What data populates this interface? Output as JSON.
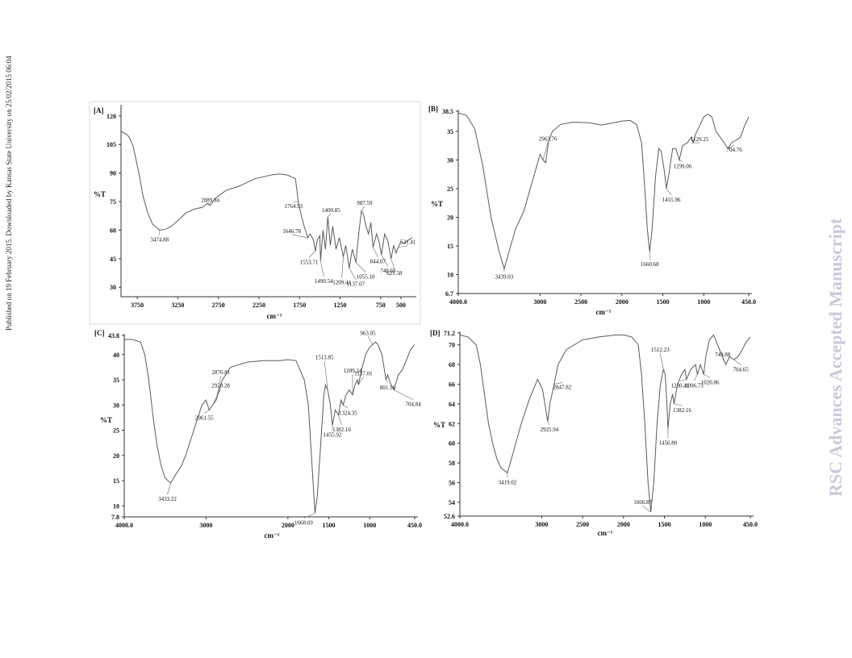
{
  "side_text_left": "Published on 19 February 2015. Downloaded by Kansas State University on 25/02/2015 06:04",
  "watermark": "RSC Advances Accepted Manuscript",
  "colors": {
    "line": "#5a5a5a",
    "text": "#111111",
    "watermark": "#c9c9dc"
  },
  "chart_data": [
    {
      "type": "line",
      "panel_label": "[A]",
      "ylabel": "%T",
      "xlabel": "cm⁻¹",
      "xlim": [
        3950,
        350
      ],
      "ylim": [
        25,
        125
      ],
      "xticks": [
        3750,
        3250,
        2750,
        2250,
        1750,
        1250,
        750,
        500
      ],
      "yticks": [
        30,
        45,
        60,
        75,
        90,
        105,
        120
      ],
      "points": [
        [
          3950,
          112
        ],
        [
          3870,
          110
        ],
        [
          3840,
          108
        ],
        [
          3800,
          104
        ],
        [
          3760,
          96
        ],
        [
          3720,
          88
        ],
        [
          3680,
          78
        ],
        [
          3620,
          69
        ],
        [
          3560,
          63
        ],
        [
          3500,
          61
        ],
        [
          3474.88,
          60
        ],
        [
          3400,
          60.5
        ],
        [
          3330,
          62
        ],
        [
          3250,
          65
        ],
        [
          3150,
          69
        ],
        [
          3050,
          71
        ],
        [
          2950,
          72
        ],
        [
          2890,
          74
        ],
        [
          2850,
          73
        ],
        [
          2800,
          76
        ],
        [
          2750,
          78
        ],
        [
          2650,
          81
        ],
        [
          2500,
          83
        ],
        [
          2400,
          85
        ],
        [
          2300,
          87
        ],
        [
          2200,
          88
        ],
        [
          2100,
          89
        ],
        [
          2000,
          89.5
        ],
        [
          1900,
          89
        ],
        [
          1850,
          88
        ],
        [
          1800,
          87
        ],
        [
          1764.93,
          75
        ],
        [
          1730,
          68
        ],
        [
          1700,
          63
        ],
        [
          1646.78,
          56
        ],
        [
          1620,
          58
        ],
        [
          1580,
          55
        ],
        [
          1553.71,
          49
        ],
        [
          1530,
          55
        ],
        [
          1500,
          57
        ],
        [
          1490.54,
          44
        ],
        [
          1460,
          60
        ],
        [
          1430,
          50
        ],
        [
          1400.85,
          67
        ],
        [
          1370,
          52
        ],
        [
          1340,
          62
        ],
        [
          1300,
          50
        ],
        [
          1260,
          56
        ],
        [
          1209.41,
          46
        ],
        [
          1180,
          52
        ],
        [
          1137.07,
          40
        ],
        [
          1100,
          50
        ],
        [
          1055.1,
          43
        ],
        [
          1020,
          58
        ],
        [
          987.59,
          70
        ],
        [
          960,
          68
        ],
        [
          930,
          62
        ],
        [
          900,
          58
        ],
        [
          870,
          64
        ],
        [
          844.07,
          51
        ],
        [
          800,
          58
        ],
        [
          770,
          54
        ],
        [
          740.69,
          47
        ],
        [
          700,
          58
        ],
        [
          660,
          54
        ],
        [
          621.58,
          45
        ],
        [
          590,
          52
        ],
        [
          560,
          48
        ],
        [
          531.41,
          51
        ],
        [
          500,
          54
        ],
        [
          460,
          53
        ],
        [
          400,
          55
        ],
        [
          360,
          56
        ]
      ],
      "peaks": [
        {
          "x": 3474.88,
          "label": "3474.88"
        },
        {
          "x": 2889.94,
          "label": "2889.94"
        },
        {
          "x": 1764.93,
          "label": "1764.93"
        },
        {
          "x": 1646.78,
          "label": "1646.78"
        },
        {
          "x": 1553.71,
          "label": "1553.71"
        },
        {
          "x": 1490.54,
          "label": "1490.54"
        },
        {
          "x": 1400.85,
          "label": "1400.85"
        },
        {
          "x": 1209.41,
          "label": "1209.41"
        },
        {
          "x": 1137.07,
          "label": "1137.07"
        },
        {
          "x": 1055.1,
          "label": "1055.10"
        },
        {
          "x": 987.59,
          "label": "987.59"
        },
        {
          "x": 844.07,
          "label": "844.07"
        },
        {
          "x": 740.69,
          "label": "740.69"
        },
        {
          "x": 621.58,
          "label": "621.58"
        },
        {
          "x": 531.41,
          "label": "531.41"
        }
      ]
    },
    {
      "type": "line",
      "panel_label": "[B]",
      "ylabel": "%T",
      "xlabel": "cm⁻¹",
      "xlim": [
        4000,
        450
      ],
      "ylim": [
        6.7,
        38.5
      ],
      "xticks_labels": [
        "4000.0",
        "3000",
        "2500",
        "2000",
        "1500",
        "1000",
        "450.0"
      ],
      "xticks": [
        4000,
        3000,
        2500,
        2000,
        1500,
        1000,
        450
      ],
      "ytick_labels": [
        "6.7",
        "10",
        "15",
        "20",
        "25",
        "30",
        "35",
        "38.5"
      ],
      "yticks": [
        6.7,
        10,
        15,
        20,
        25,
        30,
        35,
        38.5
      ],
      "points": [
        [
          4000,
          38.2
        ],
        [
          3900,
          37.8
        ],
        [
          3800,
          35.5
        ],
        [
          3700,
          29
        ],
        [
          3600,
          20
        ],
        [
          3500,
          14
        ],
        [
          3439.03,
          11
        ],
        [
          3380,
          14
        ],
        [
          3300,
          18
        ],
        [
          3200,
          21
        ],
        [
          3100,
          26
        ],
        [
          3000,
          31
        ],
        [
          2963.76,
          30
        ],
        [
          2930,
          29.5
        ],
        [
          2900,
          33
        ],
        [
          2850,
          35
        ],
        [
          2750,
          36.2
        ],
        [
          2600,
          36.6
        ],
        [
          2400,
          36.5
        ],
        [
          2250,
          36.1
        ],
        [
          2100,
          36.5
        ],
        [
          2000,
          36.8
        ],
        [
          1900,
          36.9
        ],
        [
          1820,
          36.2
        ],
        [
          1760,
          33
        ],
        [
          1720,
          25
        ],
        [
          1690,
          18
        ],
        [
          1660.68,
          14
        ],
        [
          1630,
          18
        ],
        [
          1590,
          27
        ],
        [
          1550,
          32
        ],
        [
          1520,
          31.5
        ],
        [
          1480,
          28
        ],
        [
          1455.96,
          25
        ],
        [
          1420,
          28
        ],
        [
          1380,
          32
        ],
        [
          1340,
          32
        ],
        [
          1299.06,
          30
        ],
        [
          1260,
          32.5
        ],
        [
          1200,
          33
        ],
        [
          1150,
          34
        ],
        [
          1129.25,
          33
        ],
        [
          1100,
          34.5
        ],
        [
          1050,
          36
        ],
        [
          1000,
          37.5
        ],
        [
          950,
          38
        ],
        [
          900,
          37.5
        ],
        [
          850,
          35
        ],
        [
          800,
          34
        ],
        [
          750,
          33
        ],
        [
          704.76,
          32
        ],
        [
          660,
          33
        ],
        [
          600,
          33.5
        ],
        [
          550,
          34
        ],
        [
          500,
          36
        ],
        [
          450,
          37.5
        ]
      ],
      "peaks": [
        {
          "x": 3439.03,
          "label": "3439.03"
        },
        {
          "x": 2963.76,
          "label": "2963.76"
        },
        {
          "x": 1660.68,
          "label": "1660.68"
        },
        {
          "x": 1455.96,
          "label": "1455.96"
        },
        {
          "x": 1299.06,
          "label": "1299.06"
        },
        {
          "x": 1129.25,
          "label": "1129.25"
        },
        {
          "x": 704.76,
          "label": "704.76"
        }
      ]
    },
    {
      "type": "line",
      "panel_label": "[C]",
      "ylabel": "%T",
      "xlabel": "cm⁻¹",
      "xlim": [
        4000,
        450
      ],
      "ylim": [
        7.8,
        43.8
      ],
      "xticks_labels": [
        "4000.0",
        "3000",
        "2000",
        "1500",
        "1000",
        "450.0"
      ],
      "xticks": [
        4000,
        3000,
        2000,
        1500,
        1000,
        450
      ],
      "ytick_labels": [
        "7.8",
        "10",
        "15",
        "20",
        "25",
        "30",
        "35",
        "40",
        "43.8"
      ],
      "yticks": [
        7.8,
        10,
        15,
        20,
        25,
        30,
        35,
        40,
        43.8
      ],
      "points": [
        [
          4000,
          43
        ],
        [
          3900,
          43
        ],
        [
          3800,
          42.5
        ],
        [
          3750,
          40
        ],
        [
          3700,
          35
        ],
        [
          3650,
          28
        ],
        [
          3600,
          22
        ],
        [
          3550,
          18
        ],
        [
          3500,
          15.5
        ],
        [
          3433.22,
          14.5
        ],
        [
          3380,
          16
        ],
        [
          3300,
          18
        ],
        [
          3250,
          20
        ],
        [
          3150,
          25
        ],
        [
          3050,
          30
        ],
        [
          3000,
          31
        ],
        [
          2961.55,
          29
        ],
        [
          2920.28,
          30
        ],
        [
          2876.81,
          31
        ],
        [
          2800,
          35
        ],
        [
          2700,
          37.5
        ],
        [
          2500,
          38.5
        ],
        [
          2300,
          38.8
        ],
        [
          2100,
          38.8
        ],
        [
          2000,
          39
        ],
        [
          1900,
          38.8
        ],
        [
          1800,
          35
        ],
        [
          1750,
          30
        ],
        [
          1720,
          22
        ],
        [
          1690,
          14
        ],
        [
          1668.69,
          8.5
        ],
        [
          1640,
          12
        ],
        [
          1600,
          22
        ],
        [
          1560,
          32
        ],
        [
          1540,
          34
        ],
        [
          1513.85,
          33
        ],
        [
          1480,
          30
        ],
        [
          1455.92,
          26
        ],
        [
          1420,
          29
        ],
        [
          1382.16,
          28
        ],
        [
          1350,
          31
        ],
        [
          1324.35,
          30
        ],
        [
          1290,
          32
        ],
        [
          1250,
          33
        ],
        [
          1209.24,
          32
        ],
        [
          1180,
          34
        ],
        [
          1150,
          35
        ],
        [
          1137.01,
          34
        ],
        [
          1100,
          37
        ],
        [
          1050,
          40
        ],
        [
          1000,
          41.5
        ],
        [
          963.05,
          42
        ],
        [
          930,
          42.5
        ],
        [
          900,
          42
        ],
        [
          850,
          40
        ],
        [
          801.16,
          35
        ],
        [
          780,
          36
        ],
        [
          740,
          34
        ],
        [
          704.84,
          33
        ],
        [
          650,
          36
        ],
        [
          600,
          37
        ],
        [
          550,
          39
        ],
        [
          500,
          41
        ],
        [
          450,
          42
        ]
      ],
      "peaks": [
        {
          "x": 3433.22,
          "label": "3433.22"
        },
        {
          "x": 2961.55,
          "label": "2961.55"
        },
        {
          "x": 2920.28,
          "label": "2920.28"
        },
        {
          "x": 2876.81,
          "label": "2876.81"
        },
        {
          "x": 1668.69,
          "label": "1668.69"
        },
        {
          "x": 1513.85,
          "label": "1513.85"
        },
        {
          "x": 1455.92,
          "label": "1455.92"
        },
        {
          "x": 1382.16,
          "label": "1382.16"
        },
        {
          "x": 1324.35,
          "label": "1324.35"
        },
        {
          "x": 1209.24,
          "label": "1209.24"
        },
        {
          "x": 1137.01,
          "label": "1137.01"
        },
        {
          "x": 963.05,
          "label": "963.05"
        },
        {
          "x": 801.16,
          "label": "801.16"
        },
        {
          "x": 704.84,
          "label": "704.84"
        }
      ]
    },
    {
      "type": "line",
      "panel_label": "[D]",
      "ylabel": "%T",
      "xlabel": "cm⁻¹",
      "xlim": [
        4000,
        450
      ],
      "ylim": [
        52.6,
        71.2
      ],
      "xticks_labels": [
        "4000.0",
        "3000",
        "2500",
        "2000",
        "1500",
        "1000",
        "450.0"
      ],
      "xticks": [
        4000,
        3000,
        2500,
        2000,
        1500,
        1000,
        450
      ],
      "ytick_labels": [
        "52.6",
        "54",
        "56",
        "58",
        "60",
        "62",
        "64",
        "66",
        "68",
        "70",
        "71.2"
      ],
      "yticks": [
        52.6,
        54,
        56,
        58,
        60,
        62,
        64,
        66,
        68,
        70,
        71.2
      ],
      "points": [
        [
          4000,
          71
        ],
        [
          3900,
          70.8
        ],
        [
          3800,
          70
        ],
        [
          3750,
          68
        ],
        [
          3700,
          65
        ],
        [
          3650,
          62
        ],
        [
          3600,
          60
        ],
        [
          3550,
          58.5
        ],
        [
          3500,
          57.5
        ],
        [
          3419.02,
          57
        ],
        [
          3350,
          59
        ],
        [
          3250,
          62
        ],
        [
          3150,
          64.5
        ],
        [
          3050,
          66.5
        ],
        [
          2990,
          65.5
        ],
        [
          2925.94,
          62.2
        ],
        [
          2900,
          64
        ],
        [
          2847.82,
          66
        ],
        [
          2800,
          68
        ],
        [
          2700,
          69.5
        ],
        [
          2500,
          70.5
        ],
        [
          2300,
          70.8
        ],
        [
          2100,
          71
        ],
        [
          2000,
          71
        ],
        [
          1900,
          70.8
        ],
        [
          1820,
          70
        ],
        [
          1780,
          67
        ],
        [
          1740,
          62
        ],
        [
          1700,
          56
        ],
        [
          1666.87,
          53
        ],
        [
          1630,
          56
        ],
        [
          1590,
          62
        ],
        [
          1550,
          66
        ],
        [
          1512.23,
          67.5
        ],
        [
          1490,
          67
        ],
        [
          1470,
          64
        ],
        [
          1456.8,
          61.5
        ],
        [
          1430,
          64
        ],
        [
          1400,
          65
        ],
        [
          1382.16,
          64
        ],
        [
          1340,
          66
        ],
        [
          1290,
          67
        ],
        [
          1250,
          67.5
        ],
        [
          1230.41,
          66.5
        ],
        [
          1180,
          67.5
        ],
        [
          1120,
          68
        ],
        [
          1096.73,
          67
        ],
        [
          1060,
          68
        ],
        [
          1020.86,
          67
        ],
        [
          990,
          69
        ],
        [
          950,
          70.5
        ],
        [
          900,
          71
        ],
        [
          850,
          70
        ],
        [
          800,
          69
        ],
        [
          749.88,
          68
        ],
        [
          720,
          68.5
        ],
        [
          704.65,
          68.8
        ],
        [
          650,
          68.5
        ],
        [
          600,
          68.8
        ],
        [
          550,
          69.5
        ],
        [
          500,
          70.3
        ],
        [
          450,
          70.8
        ]
      ],
      "peaks": [
        {
          "x": 3419.02,
          "label": "3419.02"
        },
        {
          "x": 2925.94,
          "label": "2925.94"
        },
        {
          "x": 2847.82,
          "label": "2847.82"
        },
        {
          "x": 1666.87,
          "label": "1666.87"
        },
        {
          "x": 1512.23,
          "label": "1512.23"
        },
        {
          "x": 1456.8,
          "label": "1456.80"
        },
        {
          "x": 1382.16,
          "label": "1382.16"
        },
        {
          "x": 1230.41,
          "label": "1230.41"
        },
        {
          "x": 1096.73,
          "label": "1096.73"
        },
        {
          "x": 1020.86,
          "label": "1020.86"
        },
        {
          "x": 749.88,
          "label": "749.88"
        },
        {
          "x": 704.65,
          "label": "704.65"
        }
      ]
    }
  ]
}
